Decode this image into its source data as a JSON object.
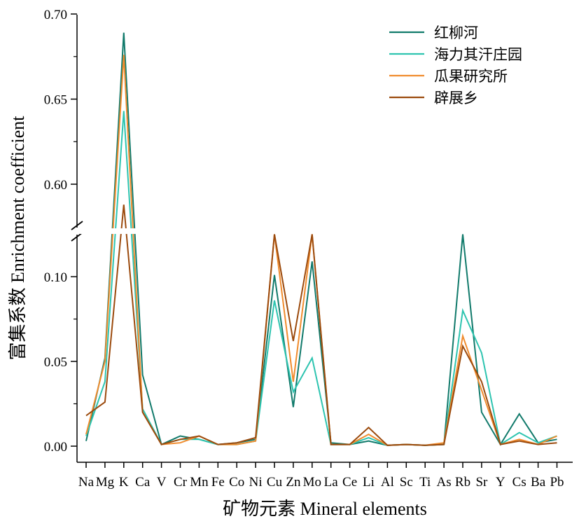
{
  "chart_data": {
    "type": "line",
    "xlabel": "矿物元素 Mineral elements",
    "ylabel": "富集系数 Enrichment coefficient",
    "categories": [
      "Na",
      "Mg",
      "K",
      "Ca",
      "V",
      "Cr",
      "Mn",
      "Fe",
      "Co",
      "Ni",
      "Cu",
      "Zn",
      "Mo",
      "La",
      "Ce",
      "Li",
      "Al",
      "Sc",
      "Ti",
      "As",
      "Rb",
      "Sr",
      "Y",
      "Cs",
      "Ba",
      "Pb"
    ],
    "y_axis_broken": true,
    "ylim_lower": [
      0,
      0.125
    ],
    "ylim_upper": [
      0.575,
      0.7
    ],
    "yticks_lower": [
      "0.00",
      "0.05",
      "0.10"
    ],
    "yticks_upper": [
      "0.60",
      "0.65",
      "0.70"
    ],
    "legend_position": "top-right",
    "series": [
      {
        "name": "红柳河",
        "color": "#117a6b",
        "values": [
          0.003,
          0.052,
          0.689,
          0.042,
          0.001,
          0.006,
          0.004,
          0.001,
          0.002,
          0.004,
          0.101,
          0.023,
          0.109,
          0.002,
          0.001,
          0.003,
          0.0005,
          0.001,
          0.0005,
          0.001,
          0.125,
          0.02,
          0.001,
          0.019,
          0.002,
          0.004
        ]
      },
      {
        "name": "海力其汗庄园",
        "color": "#2ec4b0",
        "values": [
          0.006,
          0.038,
          0.643,
          0.022,
          0.001,
          0.004,
          0.004,
          0.001,
          0.001,
          0.003,
          0.086,
          0.032,
          0.052,
          0.001,
          0.001,
          0.005,
          0.0005,
          0.001,
          0.0005,
          0.001,
          0.08,
          0.055,
          0.001,
          0.008,
          0.002,
          0.006
        ]
      },
      {
        "name": "瓜果研究所",
        "color": "#f08c2e",
        "values": [
          0.007,
          0.05,
          0.676,
          0.02,
          0.001,
          0.002,
          0.006,
          0.001,
          0.001,
          0.003,
          0.125,
          0.038,
          0.125,
          0.001,
          0.001,
          0.007,
          0.0005,
          0.001,
          0.0005,
          0.002,
          0.065,
          0.033,
          0.001,
          0.004,
          0.001,
          0.006
        ]
      },
      {
        "name": "辟展乡",
        "color": "#9b4a0d",
        "values": [
          0.018,
          0.026,
          0.588,
          0.02,
          0.001,
          0.004,
          0.006,
          0.001,
          0.002,
          0.005,
          0.125,
          0.062,
          0.125,
          0.001,
          0.001,
          0.011,
          0.0005,
          0.001,
          0.0005,
          0.001,
          0.059,
          0.038,
          0.001,
          0.003,
          0.001,
          0.002
        ]
      }
    ]
  }
}
